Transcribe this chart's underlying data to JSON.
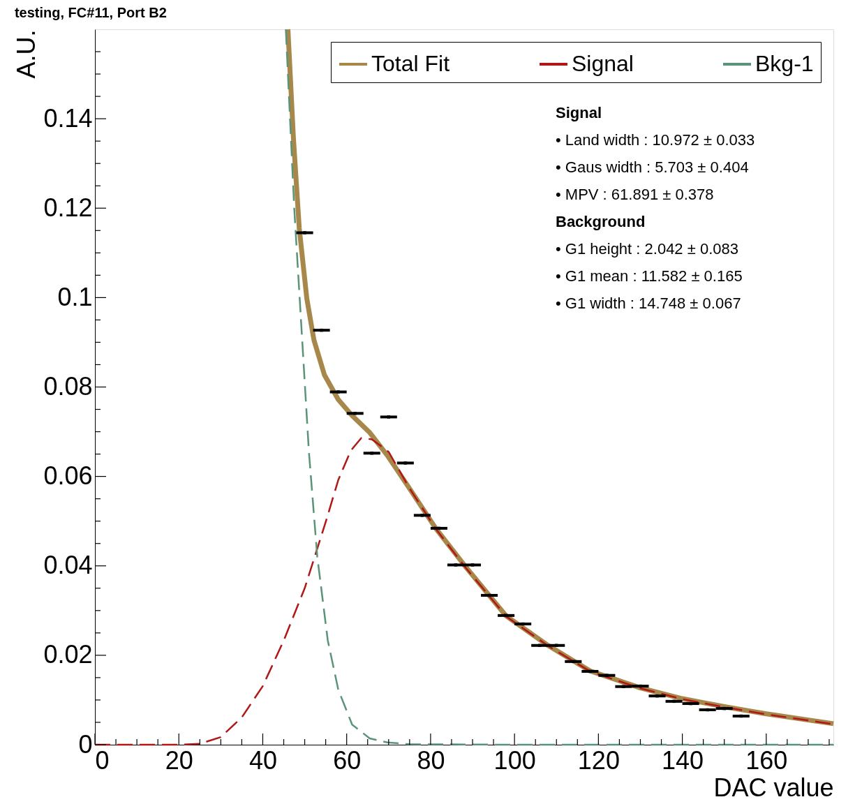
{
  "chart_data": {
    "type": "line",
    "title": "testing, FC#11, Port B2",
    "xlabel": "DAC value",
    "ylabel": "A.U.",
    "xlim": [
      0,
      176
    ],
    "ylim": [
      0,
      0.16
    ],
    "xticks": [
      0,
      {
        "value": 5,
        "label": null
      },
      {
        "value": 10,
        "label": null
      },
      {
        "value": 15,
        "label": null
      },
      20,
      {
        "value": 25,
        "label": null
      },
      {
        "value": 30,
        "label": null
      },
      {
        "value": 35,
        "label": null
      },
      40,
      {
        "value": 45,
        "label": null
      },
      {
        "value": 50,
        "label": null
      },
      {
        "value": 55,
        "label": null
      },
      60,
      {
        "value": 65,
        "label": null
      },
      {
        "value": 70,
        "label": null
      },
      {
        "value": 75,
        "label": null
      },
      80,
      {
        "value": 85,
        "label": null
      },
      {
        "value": 90,
        "label": null
      },
      {
        "value": 95,
        "label": null
      },
      100,
      {
        "value": 105,
        "label": null
      },
      {
        "value": 110,
        "label": null
      },
      {
        "value": 115,
        "label": null
      },
      120,
      {
        "value": 125,
        "label": null
      },
      {
        "value": 130,
        "label": null
      },
      {
        "value": 135,
        "label": null
      },
      140,
      {
        "value": 145,
        "label": null
      },
      {
        "value": 150,
        "label": null
      },
      {
        "value": 155,
        "label": null
      },
      160,
      {
        "value": 165,
        "label": null
      },
      {
        "value": 170,
        "label": null
      },
      {
        "value": 175,
        "label": null
      }
    ],
    "yticks": [
      0,
      {
        "value": 0.005,
        "label": null
      },
      {
        "value": 0.01,
        "label": null
      },
      {
        "value": 0.015,
        "label": null
      },
      0.02,
      {
        "value": 0.025,
        "label": null
      },
      {
        "value": 0.03,
        "label": null
      },
      {
        "value": 0.035,
        "label": null
      },
      0.04,
      {
        "value": 0.045,
        "label": null
      },
      {
        "value": 0.05,
        "label": null
      },
      {
        "value": 0.055,
        "label": null
      },
      0.06,
      {
        "value": 0.065,
        "label": null
      },
      {
        "value": 0.07,
        "label": null
      },
      {
        "value": 0.075,
        "label": null
      },
      0.08,
      {
        "value": 0.085,
        "label": null
      },
      {
        "value": 0.09,
        "label": null
      },
      {
        "value": 0.095,
        "label": null
      },
      0.1,
      {
        "value": 0.105,
        "label": null
      },
      {
        "value": 0.11,
        "label": null
      },
      {
        "value": 0.115,
        "label": null
      },
      0.12,
      {
        "value": 0.125,
        "label": null
      },
      {
        "value": 0.13,
        "label": null
      },
      {
        "value": 0.135,
        "label": null
      },
      0.14,
      {
        "value": 0.145,
        "label": null
      },
      {
        "value": 0.15,
        "label": null
      },
      {
        "value": 0.155,
        "label": null
      }
    ],
    "grid": false,
    "legend": "top right",
    "series": [
      {
        "type": "scatter",
        "color": "#000000",
        "x": [
          50,
          54,
          58,
          62,
          66,
          70,
          74,
          78,
          82,
          86,
          90,
          94,
          98,
          102,
          106,
          110,
          114,
          118,
          122,
          126,
          130,
          134,
          138,
          142,
          146,
          150,
          154
        ],
        "values": [
          0.1145,
          0.0927,
          0.0789,
          0.0741,
          0.0652,
          0.0733,
          0.063,
          0.0513,
          0.0484,
          0.0402,
          0.0402,
          0.0334,
          0.0289,
          0.027,
          0.0222,
          0.0222,
          0.0186,
          0.0164,
          0.0155,
          0.013,
          0.0131,
          0.0109,
          0.0097,
          0.0092,
          0.0078,
          0.0081,
          0.0064
        ],
        "xerrors": [
          2,
          2,
          2,
          2,
          2,
          2,
          2,
          2,
          2,
          2,
          2,
          2,
          2,
          2,
          2,
          2,
          2,
          2,
          2,
          2,
          2,
          2,
          2,
          2,
          2,
          2,
          2
        ]
      },
      {
        "type": "line",
        "name": "Total Fit",
        "color": "#a8884a",
        "line_style": "solid",
        "x": [
          46,
          47.3,
          48.7,
          50.5,
          52.2,
          54.7,
          58,
          61.3,
          65.5,
          69.7,
          74.7,
          81.3,
          88,
          98,
          108,
          118,
          130,
          140,
          150,
          160,
          176
        ],
        "values": [
          0.16,
          0.1358,
          0.1155,
          0.0998,
          0.0905,
          0.0827,
          0.0772,
          0.0736,
          0.0698,
          0.0647,
          0.0577,
          0.0483,
          0.0402,
          0.0288,
          0.0222,
          0.0165,
          0.0127,
          0.0103,
          0.0085,
          0.0069,
          0.0047
        ]
      },
      {
        "type": "line",
        "name": "Signal",
        "color": "#b01818",
        "line_style": "dashed",
        "x": [
          0,
          20,
          25,
          30,
          35,
          40,
          45,
          50,
          55,
          58,
          61,
          63.5,
          66,
          70,
          75,
          81.3,
          88,
          98,
          108,
          118,
          130,
          140,
          150,
          160,
          176
        ],
        "values": [
          0,
          0,
          0.0002,
          0.0017,
          0.0061,
          0.0131,
          0.0233,
          0.035,
          0.0498,
          0.0592,
          0.0658,
          0.0686,
          0.0683,
          0.0655,
          0.0573,
          0.0482,
          0.04,
          0.0287,
          0.0221,
          0.0164,
          0.0126,
          0.0102,
          0.0084,
          0.0068,
          0.0046
        ]
      },
      {
        "type": "line",
        "name": "Bkg-1",
        "color": "#5a9478",
        "line_style": "dashed",
        "x": [
          45.5,
          47.5,
          49.2,
          51,
          53,
          55.5,
          58,
          61.3,
          65.5,
          69.7,
          75,
          100,
          176
        ],
        "values": [
          0.16,
          0.12,
          0.0936,
          0.0655,
          0.042,
          0.0233,
          0.0123,
          0.0045,
          0.0014,
          0.0005,
          0.0001,
          0,
          0
        ]
      }
    ],
    "annotations": [
      "Signal",
      "• Land width : 10.972 ± 0.033",
      "• Gaus width : 5.703 ± 0.404",
      "• MPV        : 61.891 ± 0.378",
      "Background",
      "• G1 height : 2.042 ± 0.083",
      "• G1 mean   : 11.582 ± 0.165",
      "• G1 width  : 14.748 ± 0.067"
    ]
  }
}
